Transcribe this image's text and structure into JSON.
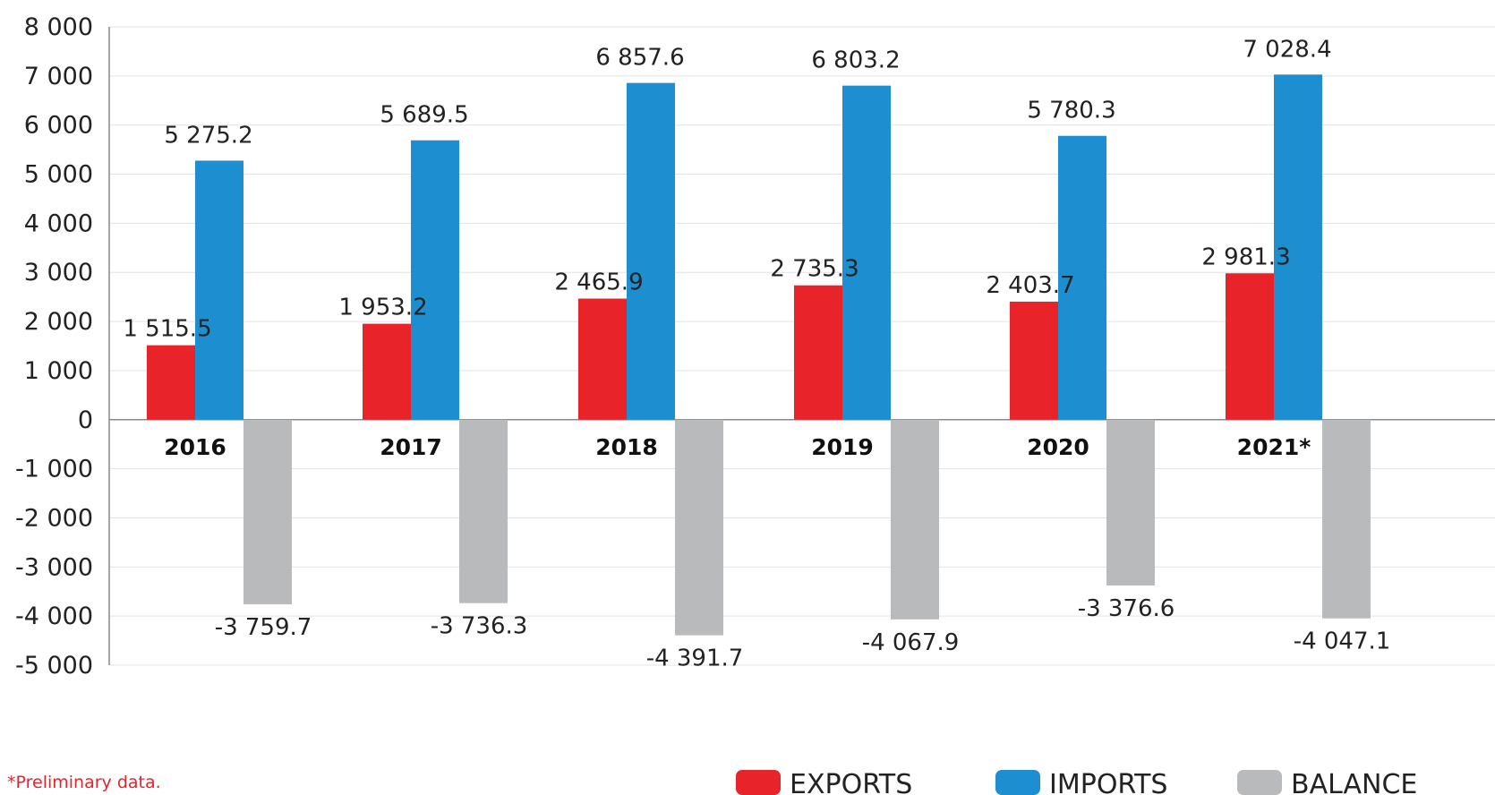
{
  "chart_data": {
    "type": "bar",
    "categories": [
      "2016",
      "2017",
      "2018",
      "2019",
      "2020",
      "2021*"
    ],
    "series": [
      {
        "name": "EXPORTS",
        "color": "#e8232a",
        "values": [
          1515.5,
          1953.2,
          2465.9,
          2735.3,
          2403.7,
          2981.3
        ],
        "labels": [
          "1 515.5",
          "1 953.2",
          "2 465.9",
          "2 735.3",
          "2 403.7",
          "2 981.3"
        ]
      },
      {
        "name": "IMPORTS",
        "color": "#1d8fd0",
        "values": [
          5275.2,
          5689.5,
          6857.6,
          6803.2,
          5780.3,
          7028.4
        ],
        "labels": [
          "5 275.2",
          "5 689.5",
          "6 857.6",
          "6 803.2",
          "5 780.3",
          "7 028.4"
        ]
      },
      {
        "name": "BALANCE",
        "color": "#b8babc",
        "values": [
          -3759.7,
          -3736.3,
          -4391.7,
          -4067.9,
          -3376.6,
          -4047.1
        ],
        "labels": [
          "-3 759.7",
          "-3 736.3",
          "-4 391.7",
          "-4 067.9",
          "-3 376.6",
          "-4 047.1"
        ]
      }
    ],
    "ylim": [
      -5000,
      8000
    ],
    "yticks": [
      8000,
      7000,
      6000,
      5000,
      4000,
      3000,
      2000,
      1000,
      0,
      -1000,
      -2000,
      -3000,
      -4000,
      -5000
    ],
    "ytick_labels": [
      "8 000",
      "7 000",
      "6 000",
      "5 000",
      "4 000",
      "3 000",
      "2 000",
      "1 000",
      "0",
      "-1 000",
      "-2 000",
      "-3 000",
      "-4 000",
      "-5 000"
    ],
    "grid": true,
    "legend_position": "bottom-right",
    "footnote": "*Preliminary data."
  }
}
